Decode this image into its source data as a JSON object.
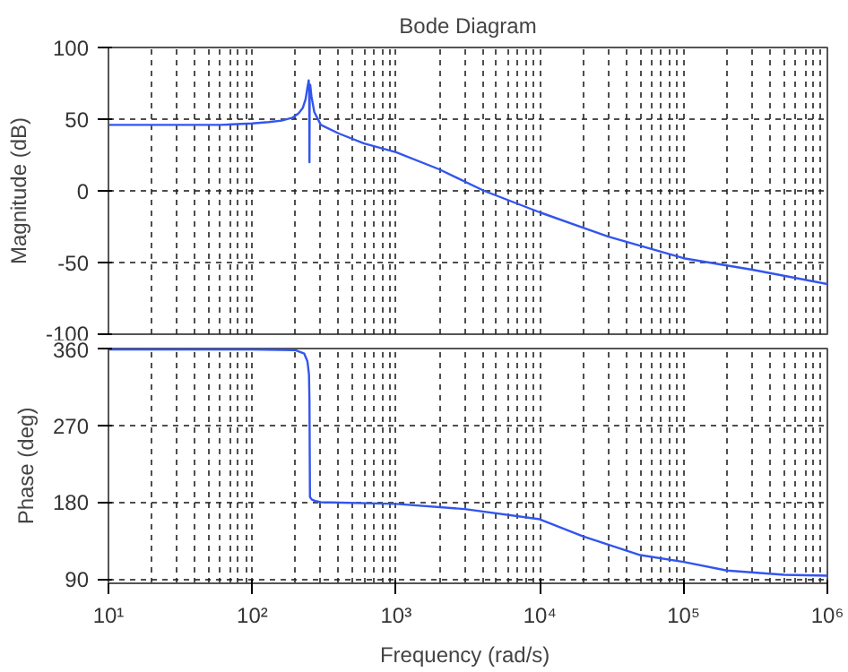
{
  "chart_data": [
    {
      "type": "line",
      "title": "Bode Diagram",
      "ylabel": "Magnitude (dB)",
      "log": "x",
      "grid": true,
      "tick_labels": "y",
      "line_style": "solid",
      "xlim": [
        10,
        1000000
      ],
      "xticks": [
        10,
        100,
        1000,
        10000,
        100000,
        1000000
      ],
      "ylim": [
        -100,
        100
      ],
      "yticks": [
        -100,
        -50,
        0,
        50,
        100
      ],
      "series": [
        {
          "color": "#3355ee",
          "x": [
            10,
            30,
            60,
            100,
            130,
            160,
            190,
            210,
            225,
            235,
            242,
            247,
            249,
            250,
            251,
            253,
            258,
            270,
            300,
            400,
            600,
            1000,
            2000,
            4100,
            10000,
            30000,
            100000,
            300000,
            1000000
          ],
          "values": [
            46,
            46,
            46,
            47,
            48,
            49,
            51,
            54,
            58,
            64,
            72,
            77,
            70,
            20,
            70,
            74,
            66,
            55,
            46,
            40,
            33,
            27,
            15,
            0,
            -15,
            -32,
            -47,
            -55,
            -65
          ]
        }
      ]
    },
    {
      "type": "line",
      "xlabel": "Frequency  (rad/s)",
      "ylabel": "Phase (deg)",
      "log": "x",
      "grid": true,
      "line_style": "solid",
      "xlim": [
        10,
        1000000
      ],
      "xticks": [
        {
          "value": 10,
          "label": "10¹"
        },
        {
          "value": 100,
          "label": "10²"
        },
        {
          "value": 1000,
          "label": "10³"
        },
        {
          "value": 10000,
          "label": "10⁴"
        },
        {
          "value": 100000,
          "label": "10⁵"
        },
        {
          "value": 1000000,
          "label": "10⁶"
        }
      ],
      "ylim": [
        85,
        360
      ],
      "yticks": [
        90,
        180,
        270,
        360
      ],
      "series": [
        {
          "color": "#3355ee",
          "x": [
            10,
            100,
            200,
            230,
            242,
            248,
            250,
            252,
            260,
            280,
            300,
            1000,
            3000,
            10000,
            20000,
            50000,
            100000,
            200000,
            500000,
            1000000
          ],
          "values": [
            359,
            359,
            358,
            354,
            345,
            330,
            300,
            186,
            183,
            181,
            180,
            178,
            172,
            160,
            140,
            118,
            110,
            100,
            95,
            94
          ]
        }
      ]
    }
  ]
}
